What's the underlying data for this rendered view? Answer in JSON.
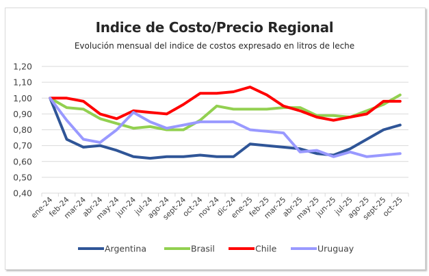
{
  "chart_data": {
    "type": "line",
    "title": "Indice de Costo/Precio Regional",
    "subtitle": "Evolución mensual del indice de costos expresado en litros de leche",
    "xlabel": "",
    "ylabel": "",
    "ylim": [
      0.4,
      1.2
    ],
    "yticks": [
      "1,20",
      "1,10",
      "1,00",
      "0,90",
      "0,80",
      "0,70",
      "0,60",
      "0,50",
      "0,40"
    ],
    "ytick_values": [
      1.2,
      1.1,
      1.0,
      0.9,
      0.8,
      0.7,
      0.6,
      0.5,
      0.4
    ],
    "grid": true,
    "legend_position": "bottom",
    "categories": [
      "ene-24",
      "feb-24",
      "mar-24",
      "abr-24",
      "may-24",
      "jun-24",
      "jul-24",
      "ago-24",
      "sept-24",
      "oct-24",
      "nov-24",
      "dic-24",
      "ene-25",
      "feb-25",
      "mar-25",
      "abr-25",
      "may-25",
      "jun-25",
      "jul-25",
      "ago-25",
      "sept-25",
      "oct-25"
    ],
    "series": [
      {
        "name": "Argentina",
        "color": "#2F5597",
        "values": [
          1.0,
          0.74,
          0.69,
          0.7,
          0.67,
          0.63,
          0.62,
          0.63,
          0.63,
          0.64,
          0.63,
          0.63,
          0.71,
          0.7,
          0.69,
          0.68,
          0.65,
          0.64,
          0.68,
          0.74,
          0.8,
          0.83
        ]
      },
      {
        "name": "Brasil",
        "color": "#92D050",
        "values": [
          1.0,
          0.94,
          0.93,
          0.87,
          0.84,
          0.81,
          0.82,
          0.8,
          0.8,
          0.86,
          0.95,
          0.93,
          0.93,
          0.93,
          0.94,
          0.94,
          0.89,
          0.89,
          0.88,
          0.92,
          0.96,
          1.02
        ]
      },
      {
        "name": "Chile",
        "color": "#FF0000",
        "values": [
          1.0,
          1.0,
          0.98,
          0.9,
          0.87,
          0.92,
          0.91,
          0.9,
          0.96,
          1.03,
          1.03,
          1.04,
          1.07,
          1.02,
          0.95,
          0.92,
          0.88,
          0.86,
          0.88,
          0.9,
          0.98,
          0.98
        ]
      },
      {
        "name": "Uruguay",
        "color": "#9999FF",
        "values": [
          1.0,
          0.86,
          0.74,
          0.72,
          0.8,
          0.91,
          0.85,
          0.81,
          0.83,
          0.85,
          0.85,
          0.85,
          0.8,
          0.79,
          0.78,
          0.66,
          0.67,
          0.63,
          0.66,
          0.63,
          0.64,
          0.65
        ]
      }
    ]
  }
}
